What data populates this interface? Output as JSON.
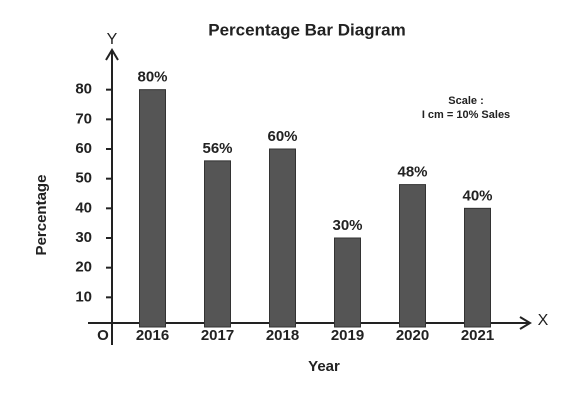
{
  "chart_data": {
    "type": "bar",
    "title": "Percentage Bar Diagram",
    "categories": [
      "2016",
      "2017",
      "2018",
      "2019",
      "2020",
      "2021"
    ],
    "values": [
      80,
      56,
      60,
      30,
      48,
      40
    ],
    "value_labels": [
      "80%",
      "56%",
      "60%",
      "30%",
      "48%",
      "40%"
    ],
    "color": "#555555",
    "xlabel": "Year",
    "ylabel": "Percentage",
    "x_axis_letter": "X",
    "y_axis_letter": "Y",
    "origin_label": "O",
    "annotations": [
      "Scale :",
      "I cm = 10% Sales"
    ],
    "ylim": [
      0,
      90
    ],
    "yticks": [
      10,
      20,
      30,
      40,
      50,
      60,
      70,
      80
    ]
  }
}
